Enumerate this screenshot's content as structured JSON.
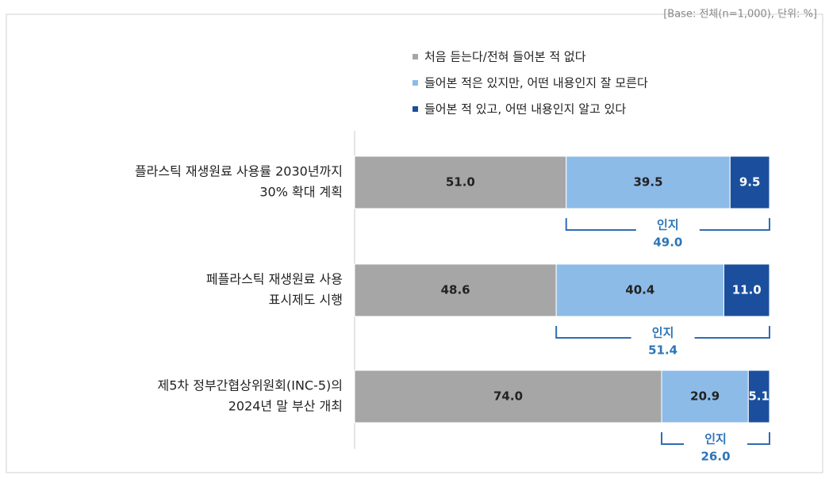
{
  "chart_data": {
    "type": "stacked-barh",
    "note": "[Base: 전체(n=1,000), 단위: %]",
    "categories": [
      [
        "플라스틱 재생원료 사용률 2030년까지",
        "30% 확대 계획"
      ],
      [
        "페플라스틱 재생원료 사용",
        "표시제도 시행"
      ],
      [
        "제5차 정부간협상위원회(INC-5)의",
        "2024년 말 부산 개최"
      ]
    ],
    "series": [
      {
        "name": "처음 듣는다/전혀 들어본 적 없다",
        "color": "#a6a6a6",
        "values": [
          51.0,
          48.6,
          74.0
        ],
        "value_labels": [
          "51.0",
          "48.6",
          "74.0"
        ]
      },
      {
        "name": "들어본 적은 있지만, 어떤 내용인지 잘 모른다",
        "color": "#8cbbe8",
        "values": [
          39.5,
          40.4,
          20.9
        ],
        "value_labels": [
          "39.5",
          "40.4",
          "20.9"
        ]
      },
      {
        "name": "들어본 적 있고, 어떤 내용인지 알고 있다",
        "color": "#1b4f9e",
        "values": [
          9.5,
          11.0,
          5.1
        ],
        "value_labels": [
          "9.5",
          "11.0",
          "5.1"
        ]
      }
    ],
    "awareness": {
      "label": "인지",
      "values": [
        49.0,
        51.4,
        26.0
      ],
      "value_labels": [
        "49.0",
        "51.4",
        "26.0"
      ]
    }
  }
}
